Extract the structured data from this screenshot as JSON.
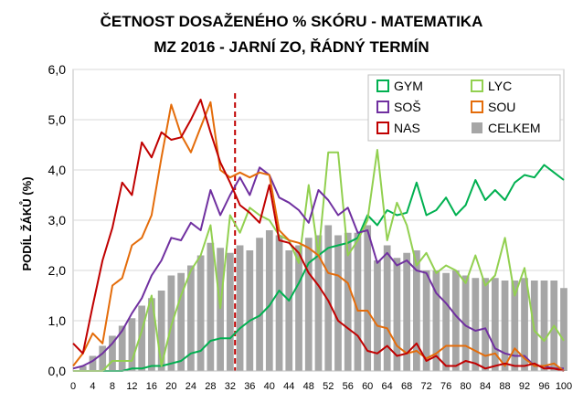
{
  "chart_data": {
    "type": "line",
    "title_line1": "ČETNOST DOSAŽENÉHO % SKÓRU - MATEMATIKA",
    "title_line2": "MZ 2016 - JARNÍ ZO, ŘÁDNÝ TERMÍN",
    "xlabel": "",
    "ylabel": "PODÍL ŽÁKŮ (%)",
    "xlim": [
      0,
      100
    ],
    "ylim": [
      0,
      6
    ],
    "x_ticks": [
      "0",
      "4",
      "8",
      "12",
      "16",
      "20",
      "24",
      "28",
      "32",
      "36",
      "40",
      "44",
      "48",
      "52",
      "56",
      "60",
      "64",
      "68",
      "72",
      "76",
      "80",
      "84",
      "88",
      "92",
      "96",
      "100"
    ],
    "y_ticks": [
      "0,0",
      "1,0",
      "2,0",
      "3,0",
      "4,0",
      "5,0",
      "6,0"
    ],
    "grid": "horizontal",
    "legend_position": "top-right",
    "x": [
      0,
      2,
      4,
      6,
      8,
      10,
      12,
      14,
      16,
      18,
      20,
      22,
      24,
      26,
      28,
      30,
      32,
      34,
      36,
      38,
      40,
      42,
      44,
      46,
      48,
      50,
      52,
      54,
      56,
      58,
      60,
      62,
      64,
      66,
      68,
      70,
      72,
      74,
      76,
      78,
      80,
      82,
      84,
      86,
      88,
      90,
      92,
      94,
      96,
      98,
      100
    ],
    "vertical_marker": {
      "x": 33,
      "color": "#c00000",
      "style": "dashed"
    },
    "bars": {
      "name": "CELKEM",
      "color": "#a6a6a6",
      "values": [
        0.0,
        0.1,
        0.3,
        0.5,
        0.7,
        0.9,
        1.05,
        1.3,
        1.45,
        1.6,
        1.9,
        1.95,
        2.1,
        2.3,
        2.55,
        2.45,
        2.35,
        2.5,
        2.4,
        2.65,
        2.8,
        2.7,
        2.4,
        2.5,
        2.65,
        2.7,
        2.9,
        2.7,
        2.75,
        2.75,
        2.9,
        2.2,
        2.5,
        2.25,
        2.35,
        2.4,
        2.0,
        2.0,
        1.95,
        2.0,
        1.9,
        1.85,
        1.85,
        1.85,
        1.8,
        1.8,
        1.85,
        1.8,
        1.8,
        1.8,
        1.65
      ]
    },
    "series": [
      {
        "name": "GYM",
        "color": "#00b050",
        "values": [
          0.0,
          0.0,
          0.0,
          0.0,
          0.0,
          0.0,
          0.05,
          0.05,
          0.1,
          0.1,
          0.15,
          0.2,
          0.35,
          0.4,
          0.6,
          0.65,
          0.65,
          0.85,
          1.0,
          1.1,
          1.3,
          1.6,
          1.4,
          1.75,
          2.15,
          2.3,
          2.45,
          2.5,
          2.55,
          2.65,
          3.1,
          2.9,
          3.2,
          3.1,
          3.15,
          3.75,
          3.1,
          3.2,
          3.45,
          3.1,
          3.3,
          3.8,
          3.4,
          3.6,
          3.4,
          3.75,
          3.9,
          3.85,
          4.1,
          3.95,
          3.8
        ]
      },
      {
        "name": "LYC",
        "color": "#92d050",
        "values": [
          0.0,
          0.0,
          0.0,
          0.0,
          0.2,
          0.2,
          0.2,
          0.8,
          1.5,
          0.1,
          0.9,
          1.5,
          2.0,
          2.3,
          2.9,
          1.25,
          3.1,
          2.75,
          3.25,
          3.1,
          3.0,
          2.7,
          2.6,
          2.15,
          3.7,
          2.3,
          4.35,
          4.35,
          2.3,
          2.6,
          3.0,
          4.4,
          2.6,
          3.35,
          2.9,
          2.1,
          2.35,
          1.95,
          2.1,
          2.0,
          1.75,
          2.3,
          1.7,
          1.9,
          2.65,
          1.5,
          2.05,
          0.8,
          0.6,
          0.9,
          0.6
        ]
      },
      {
        "name": "SOŠ",
        "color": "#7030a0",
        "values": [
          0.05,
          0.1,
          0.2,
          0.35,
          0.55,
          0.8,
          1.15,
          1.45,
          1.9,
          2.2,
          2.65,
          2.6,
          2.95,
          2.8,
          3.6,
          3.1,
          3.5,
          3.85,
          3.5,
          4.05,
          3.9,
          3.45,
          3.35,
          3.2,
          2.95,
          3.6,
          3.4,
          3.1,
          3.25,
          2.75,
          2.8,
          2.15,
          2.35,
          2.1,
          2.2,
          2.0,
          1.95,
          1.55,
          1.35,
          1.1,
          0.9,
          0.8,
          0.85,
          0.45,
          0.35,
          0.3,
          0.3,
          0.1,
          0.1,
          0.05,
          0.05
        ]
      },
      {
        "name": "SOU",
        "color": "#e46c0a",
        "values": [
          0.1,
          0.35,
          0.75,
          0.55,
          1.7,
          1.85,
          2.5,
          2.65,
          3.1,
          4.25,
          5.3,
          4.7,
          4.35,
          4.85,
          5.35,
          4.0,
          3.85,
          3.95,
          3.85,
          3.95,
          3.9,
          2.8,
          2.6,
          2.55,
          2.45,
          2.3,
          1.95,
          1.9,
          1.75,
          1.2,
          1.2,
          0.9,
          0.85,
          0.5,
          0.35,
          0.4,
          0.25,
          0.35,
          0.5,
          0.5,
          0.5,
          0.4,
          0.3,
          0.35,
          0.1,
          0.45,
          0.25,
          0.1,
          0.1,
          0.15,
          0.0
        ]
      },
      {
        "name": "NAS",
        "color": "#c00000",
        "values": [
          0.55,
          0.35,
          1.3,
          2.2,
          2.85,
          3.75,
          3.5,
          4.55,
          4.25,
          4.75,
          4.6,
          4.65,
          5.0,
          5.4,
          4.75,
          4.15,
          3.75,
          3.3,
          3.15,
          2.95,
          3.7,
          2.6,
          2.55,
          2.35,
          1.95,
          1.7,
          1.4,
          1.0,
          0.85,
          0.7,
          0.4,
          0.35,
          0.5,
          0.3,
          0.35,
          0.55,
          0.2,
          0.3,
          0.1,
          0.1,
          0.2,
          0.15,
          0.05,
          0.1,
          0.15,
          0.1,
          0.1,
          0.15,
          0.05,
          0.05,
          0.0
        ]
      }
    ]
  }
}
